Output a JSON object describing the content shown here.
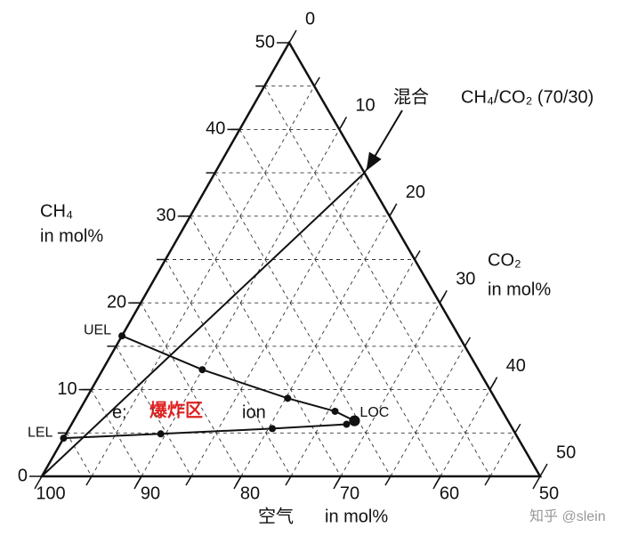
{
  "chart_data": {
    "type": "ternary",
    "axes": {
      "ch4": {
        "title": "CH₄",
        "unit": "in mol%",
        "lim": [
          0,
          50
        ],
        "ticks": [
          0,
          10,
          20,
          30,
          40,
          50
        ]
      },
      "co2": {
        "title": "CO₂",
        "unit": "in mol%",
        "lim": [
          0,
          50
        ],
        "ticks": [
          0,
          10,
          20,
          30,
          40,
          50
        ]
      },
      "air": {
        "title": "空气",
        "unit": "in mol%",
        "lim": [
          100,
          50
        ],
        "ticks": [
          100,
          90,
          80,
          70,
          60,
          50
        ]
      }
    },
    "grid_ticks": [
      5,
      10,
      15,
      20,
      25,
      30,
      35,
      40,
      45
    ],
    "curves": [
      {
        "label": "UEL",
        "ch4": [
          16.2,
          12.3,
          9.0,
          7.5,
          6.4
        ],
        "co2": [
          0,
          10,
          20.2,
          25.7,
          28.2
        ]
      },
      {
        "label": "LEL",
        "ch4": [
          4.4,
          4.9,
          5.5,
          6.0,
          6.4
        ],
        "co2": [
          0,
          9.5,
          20.4,
          27.6,
          28.2
        ]
      }
    ],
    "loc_label": "LOC",
    "mix_line": {
      "label": "混合",
      "ratio_label": "CH₄/CO₂ (70/30)",
      "ch4": [
        0,
        35
      ],
      "co2": [
        0,
        15
      ]
    },
    "region_label": "爆炸区",
    "fragments": [
      "e:",
      "ion"
    ],
    "watermark": "知乎 @slein"
  }
}
